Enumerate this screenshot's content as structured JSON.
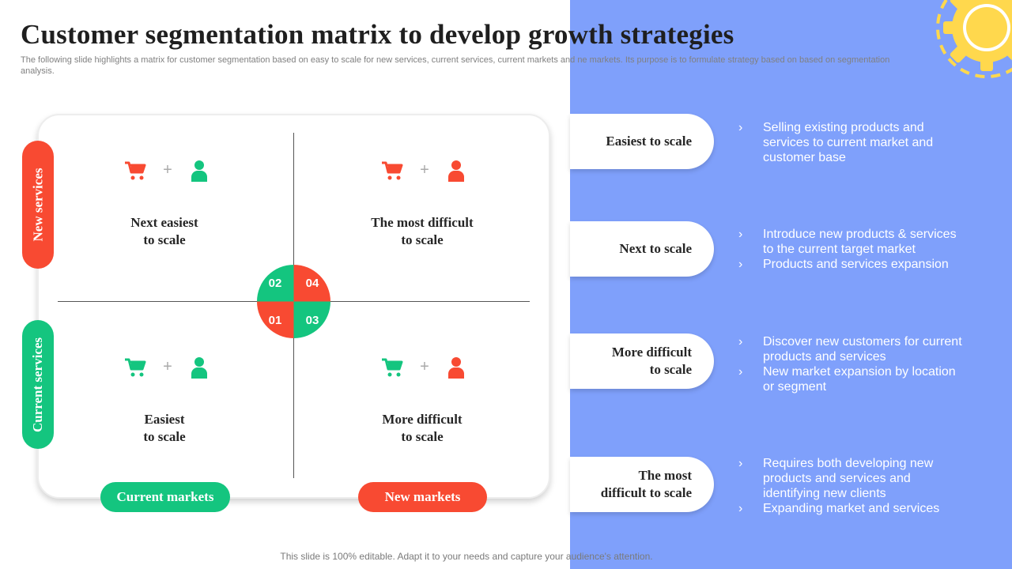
{
  "header": {
    "title": "Customer segmentation matrix to develop growth strategies",
    "subtitle": "The following slide highlights a matrix for customer segmentation based on easy to scale for new services, current services, current markets and ne markets. Its purpose is to formulate strategy based on based on segmentation analysis."
  },
  "matrix": {
    "y_axis": {
      "top": "New services",
      "bottom": "Current services"
    },
    "x_axis": {
      "left": "Current markets",
      "right": "New markets"
    },
    "quadrants": [
      {
        "number": "02",
        "label_line1": "Next easiest",
        "label_line2": "to scale",
        "cart_color": "#f84a32",
        "person_color": "#14c57f",
        "plus": "+"
      },
      {
        "number": "04",
        "label_line1": "The most difficult",
        "label_line2": "to scale",
        "cart_color": "#f84a32",
        "person_color": "#f84a32",
        "plus": "+"
      },
      {
        "number": "01",
        "label_line1": "Easiest",
        "label_line2": "to scale",
        "cart_color": "#14c57f",
        "person_color": "#14c57f",
        "plus": "+"
      },
      {
        "number": "03",
        "label_line1": "More difficult",
        "label_line2": "to scale",
        "cart_color": "#14c57f",
        "person_color": "#f84a32",
        "plus": "+"
      }
    ]
  },
  "strategies": [
    {
      "name_line1": "Easiest to scale",
      "name_line2": "",
      "bullets": [
        "Selling existing products and services to current market and customer base"
      ]
    },
    {
      "name_line1": "Next to scale",
      "name_line2": "",
      "bullets": [
        "Introduce  new products & services to the current target market",
        "Products and services expansion"
      ]
    },
    {
      "name_line1": "More difficult",
      "name_line2": "to scale",
      "bullets": [
        "Discover new customers for current products and services",
        "New market expansion by location or segment"
      ]
    },
    {
      "name_line1": "The most",
      "name_line2": "difficult to scale",
      "bullets": [
        "Requires both developing new products and services and identifying new clients",
        "Expanding market and services"
      ]
    }
  ],
  "bullet_glyph": "›",
  "footer": "This slide is 100% editable. Adapt it to your needs and capture your audience's attention.",
  "colors": {
    "red": "#f84a32",
    "green": "#14c57f",
    "panel": "#7fa0fb",
    "gear": "#ffd84d"
  },
  "icons": {
    "cart": "shopping-cart-icon",
    "person": "person-icon",
    "gear": "gear-icon"
  }
}
